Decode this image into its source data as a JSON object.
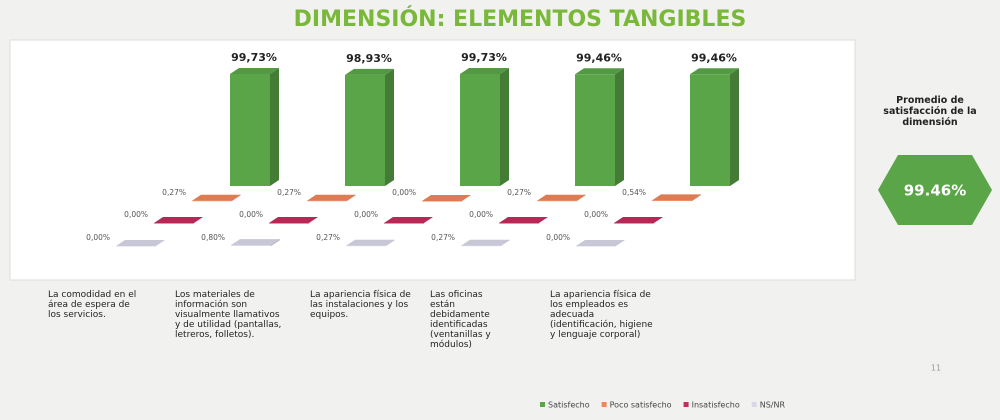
{
  "chart_data": {
    "type": "bar",
    "title": "DIMENSIÓN: ELEMENTOS TANGIBLES",
    "categories": [
      "La comodidad en el área de espera de los servicios.",
      "Los materiales de información son visualmente llamativos y de utilidad (pantallas, letreros, folletos).",
      "La apariencia física de las instalaciones y los equipos.",
      "Las oficinas están debidamente identificadas (ventanillas y módulos)",
      "La apariencia física de los empleados es adecuada (identificación, higiene y lenguaje corporal)"
    ],
    "series": [
      {
        "name": "Satisfecho",
        "color": "#5aa548",
        "values": [
          99.73,
          98.93,
          99.73,
          99.46,
          99.46
        ],
        "value_labels": [
          "99,73%",
          "98,93%",
          "99,73%",
          "99,46%",
          "99,46%"
        ]
      },
      {
        "name": "Poco satisfecho",
        "color": "#f0875a",
        "values": [
          0.27,
          0.27,
          0.0,
          0.27,
          0.54
        ],
        "value_labels": [
          "0,27%",
          "0,27%",
          "0,00%",
          "0,27%",
          "0,54%"
        ]
      },
      {
        "name": "Insatisfecho",
        "color": "#c42d5c",
        "values": [
          0.0,
          0.0,
          0.0,
          0.0,
          0.0
        ],
        "value_labels": [
          "0,00%",
          "0,00%",
          "0,00%",
          "0,00%",
          "0,00%"
        ]
      },
      {
        "name": "NS/NR",
        "color": "#d9d8e8",
        "values": [
          0.0,
          0.8,
          0.27,
          0.27,
          0.0
        ],
        "value_labels": [
          "0,00%",
          "0,80%",
          "0,27%",
          "0,27%",
          "0,00%"
        ]
      }
    ],
    "legend": "bottom"
  },
  "side_panel": {
    "title": "Promedio de satisfacción de la dimensión",
    "value": "99.46%"
  },
  "page_number": "11"
}
